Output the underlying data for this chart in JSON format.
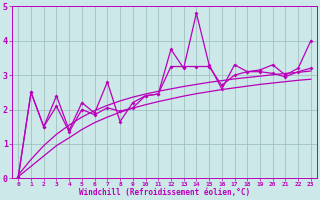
{
  "bg_color": "#cce8e8",
  "line_color": "#bb00bb",
  "grid_color": "#99bbbb",
  "xlabel": "Windchill (Refroidissement éolien,°C)",
  "xlabel_color": "#bb00bb",
  "tick_color": "#bb00bb",
  "xlim": [
    -0.5,
    23.5
  ],
  "ylim": [
    0,
    5
  ],
  "yticks": [
    0,
    1,
    2,
    3,
    4,
    5
  ],
  "xticks": [
    0,
    1,
    2,
    3,
    4,
    5,
    6,
    7,
    8,
    9,
    10,
    11,
    12,
    13,
    14,
    15,
    16,
    17,
    18,
    19,
    20,
    21,
    22,
    23
  ],
  "series_jagged1": [
    0.05,
    2.5,
    1.5,
    2.4,
    1.4,
    2.2,
    1.9,
    2.8,
    1.65,
    2.2,
    2.4,
    2.45,
    3.75,
    3.2,
    4.8,
    3.3,
    2.6,
    3.3,
    3.1,
    3.15,
    3.3,
    3.0,
    3.2,
    4.0
  ],
  "series_jagged2": [
    0.05,
    2.5,
    1.5,
    2.1,
    1.35,
    2.0,
    1.85,
    2.05,
    1.95,
    2.05,
    2.4,
    2.45,
    3.25,
    3.25,
    3.25,
    3.25,
    2.7,
    3.0,
    3.1,
    3.1,
    3.05,
    2.95,
    3.1,
    3.2
  ],
  "trend1": [
    0.1,
    0.55,
    0.95,
    1.28,
    1.55,
    1.78,
    1.97,
    2.12,
    2.25,
    2.36,
    2.45,
    2.53,
    2.6,
    2.67,
    2.73,
    2.79,
    2.84,
    2.89,
    2.93,
    2.97,
    3.01,
    3.05,
    3.08,
    3.12
  ],
  "trend2": [
    0.05,
    0.35,
    0.65,
    0.95,
    1.18,
    1.42,
    1.62,
    1.78,
    1.92,
    2.04,
    2.14,
    2.23,
    2.31,
    2.39,
    2.46,
    2.52,
    2.58,
    2.63,
    2.68,
    2.73,
    2.77,
    2.81,
    2.85,
    2.88
  ]
}
